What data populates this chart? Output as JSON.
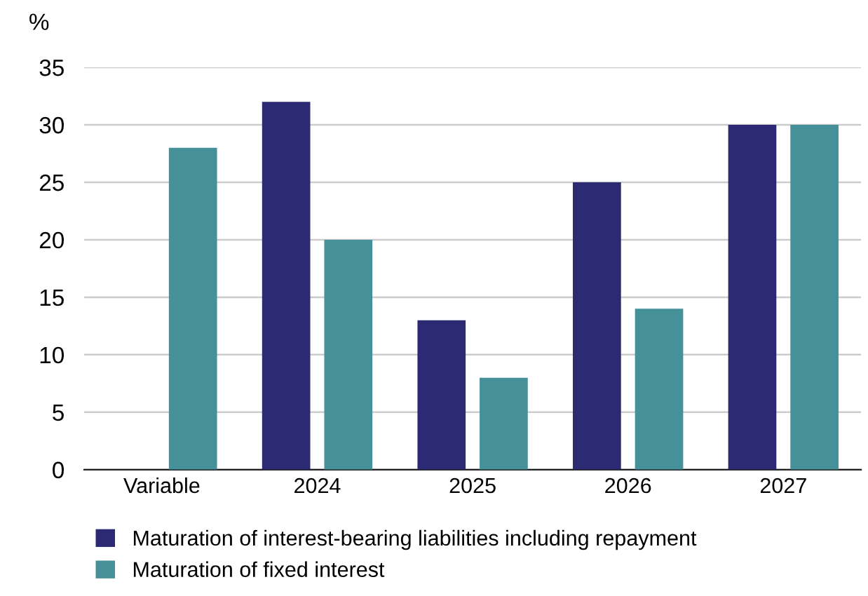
{
  "chart_data": {
    "type": "bar",
    "ylabel": "%",
    "categories": [
      "Variable",
      "2024",
      "2025",
      "2026",
      "2027"
    ],
    "series": [
      {
        "name": "Maturation of interest-bearing liabilities including repayment",
        "color": "#2b2a72",
        "values": [
          null,
          32,
          13,
          25,
          30
        ]
      },
      {
        "name": "Maturation of fixed interest",
        "color": "#46909a",
        "values": [
          28,
          20,
          8,
          14,
          30
        ]
      }
    ],
    "ylim": [
      0,
      35
    ],
    "yticks": [
      0,
      5,
      10,
      15,
      20,
      25,
      30,
      35
    ],
    "grid": "y",
    "legend": "bottom"
  }
}
